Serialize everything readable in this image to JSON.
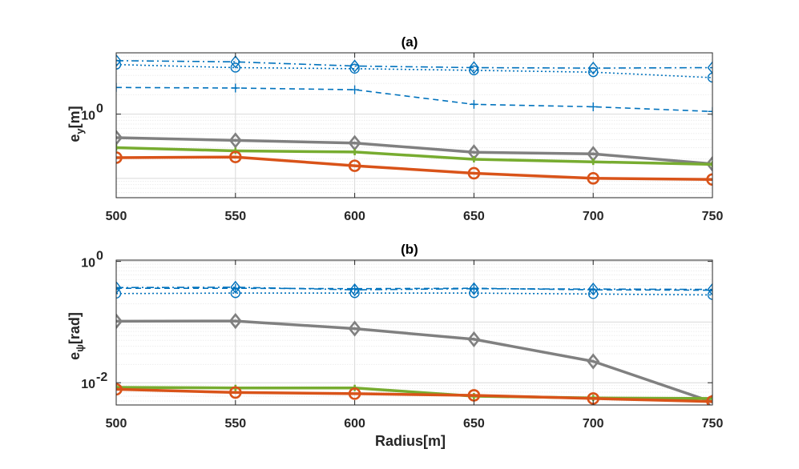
{
  "figure": {
    "xlabel": "Radius[m]"
  },
  "chart_data": [
    {
      "type": "line",
      "title": "(a)",
      "ylabel": "e",
      "ylabel_sub": "y",
      "ylabel_unit": "[m]",
      "yscale": "log",
      "ylim": [
        0.05,
        9
      ],
      "xlim": [
        500,
        750
      ],
      "grid": true,
      "x": [
        500,
        550,
        600,
        650,
        700,
        750
      ],
      "xticks": [
        "500",
        "550",
        "600",
        "650",
        "700",
        "750"
      ],
      "yticks": [
        {
          "value": 1,
          "base": "10",
          "exp": "0"
        }
      ],
      "series": [
        {
          "values": [
            6.8,
            6.5,
            5.6,
            5.3,
            5.2,
            5.3
          ],
          "color": "#0072BD",
          "lineStyle": "dashdot",
          "marker": "diamond",
          "width": 1.6
        },
        {
          "values": [
            5.9,
            5.3,
            5.1,
            4.8,
            4.5,
            3.7
          ],
          "color": "#0072BD",
          "lineStyle": "dotted",
          "marker": "circle",
          "width": 1.6
        },
        {
          "values": [
            2.6,
            2.55,
            2.4,
            1.42,
            1.3,
            1.1
          ],
          "color": "#0072BD",
          "lineStyle": "dashed",
          "marker": "plus",
          "width": 1.6
        },
        {
          "values": [
            0.43,
            0.39,
            0.355,
            0.255,
            0.24,
            0.168
          ],
          "color": "#808080",
          "lineStyle": "solid",
          "marker": "diamond",
          "width": 3.5
        },
        {
          "values": [
            0.3,
            0.268,
            0.257,
            0.198,
            0.181,
            0.165
          ],
          "color": "#77AC30",
          "lineStyle": "solid",
          "marker": "plus",
          "width": 3.5
        },
        {
          "values": [
            0.21,
            0.215,
            0.157,
            0.12,
            0.1,
            0.096
          ],
          "color": "#D95319",
          "lineStyle": "solid",
          "marker": "circle",
          "width": 3.5
        }
      ]
    },
    {
      "type": "line",
      "title": "(b)",
      "ylabel": "e",
      "ylabel_sub": "ψ",
      "ylabel_unit": "[rad]",
      "yscale": "log",
      "ylim": [
        0.0043,
        1.05
      ],
      "xlim": [
        500,
        750
      ],
      "grid": true,
      "x": [
        500,
        550,
        600,
        650,
        700,
        750
      ],
      "xticks": [
        "500",
        "550",
        "600",
        "650",
        "700",
        "750"
      ],
      "yticks": [
        {
          "value": 0.01,
          "base": "10",
          "exp": "-2"
        },
        {
          "value": 1,
          "base": "10",
          "exp": "0"
        }
      ],
      "series": [
        {
          "values": [
            0.37,
            0.375,
            0.34,
            0.355,
            0.35,
            0.345
          ],
          "color": "#0072BD",
          "lineStyle": "dashdot",
          "marker": "diamond",
          "width": 1.6
        },
        {
          "values": [
            0.36,
            0.36,
            0.355,
            0.36,
            0.34,
            0.335
          ],
          "color": "#0072BD",
          "lineStyle": "dashed",
          "marker": "plus",
          "width": 1.6
        },
        {
          "values": [
            0.295,
            0.3,
            0.3,
            0.3,
            0.29,
            0.28
          ],
          "color": "#0072BD",
          "lineStyle": "dotted",
          "marker": "circle",
          "width": 1.6
        },
        {
          "values": [
            0.103,
            0.104,
            0.078,
            0.052,
            0.0225,
            0.0048
          ],
          "color": "#808080",
          "lineStyle": "solid",
          "marker": "diamond",
          "width": 3.5
        },
        {
          "values": [
            0.0084,
            0.0082,
            0.0082,
            0.006,
            0.0056,
            0.0055
          ],
          "color": "#77AC30",
          "lineStyle": "solid",
          "marker": "plus",
          "width": 3.5
        },
        {
          "values": [
            0.0078,
            0.0069,
            0.0066,
            0.0062,
            0.0055,
            0.0049
          ],
          "color": "#D95319",
          "lineStyle": "solid",
          "marker": "circle",
          "width": 3.5
        }
      ]
    }
  ]
}
